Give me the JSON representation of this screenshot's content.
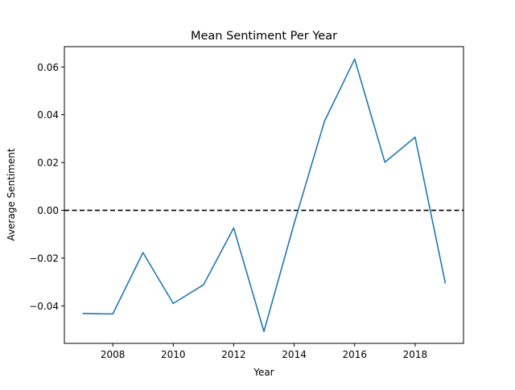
{
  "chart_data": {
    "type": "line",
    "title": "Mean Sentiment Per Year",
    "xlabel": "Year",
    "ylabel": "Average Sentiment",
    "xlim": [
      2006.4,
      2019.6
    ],
    "ylim": [
      -0.0557,
      0.0685
    ],
    "x_ticks": [
      2008,
      2010,
      2012,
      2014,
      2016,
      2018
    ],
    "y_ticks": [
      -0.04,
      -0.02,
      0.0,
      0.02,
      0.04,
      0.06
    ],
    "y_tick_labels": [
      "−0.04",
      "−0.02",
      "0.00",
      "0.02",
      "0.04",
      "0.06"
    ],
    "grid": false,
    "series": [
      {
        "color": "#1f77b4",
        "x": [
          2007,
          2008,
          2009,
          2010,
          2011,
          2012,
          2013,
          2014,
          2015,
          2016,
          2017,
          2018,
          2019
        ],
        "y": [
          -0.0432,
          -0.0434,
          -0.0177,
          -0.039,
          -0.0312,
          -0.0074,
          -0.0507,
          -0.0055,
          0.0372,
          0.0633,
          0.0201,
          0.0306,
          -0.0306
        ]
      }
    ],
    "reference_line": {
      "y": 0.0,
      "style": "dashed",
      "color": "#000000"
    }
  }
}
